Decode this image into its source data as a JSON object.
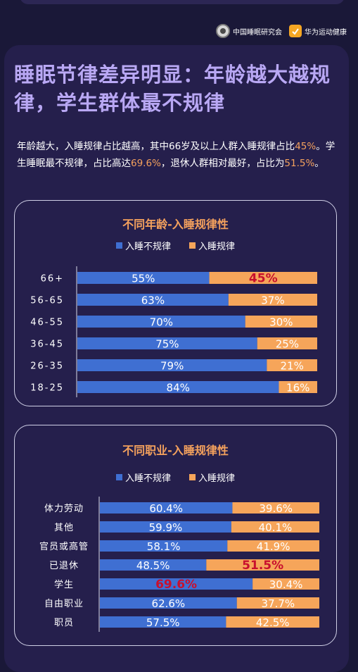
{
  "header": {
    "logos": [
      {
        "label": "中国睡眠研究会",
        "icon": "sleep-society-logo-icon"
      },
      {
        "label": "华为运动健康",
        "icon": "huawei-health-logo-icon"
      }
    ]
  },
  "title": "睡眠节律差异明显：年龄越大越规律，学生群体最不规律",
  "intro": {
    "p1": "年龄越大，入睡规律占比越高，其中66岁及以上人群入睡规律占比",
    "h1": "45%",
    "p2": "。学生睡眠最不规律，占比高达",
    "h2": "69.6%",
    "p3": "，退休人群相对最好，占比为",
    "h3": "51.5%",
    "p4": "。"
  },
  "colors": {
    "irregular": "#3f6fd2",
    "regular": "#f6a55a",
    "highlight_text": "#c8102e",
    "accent": "#f4a15d"
  },
  "chart_data": [
    {
      "type": "bar",
      "orientation": "horizontal-stacked-100",
      "title": "不同年龄-入睡规律性",
      "categories": [
        "66+",
        "56-65",
        "46-55",
        "36-45",
        "26-35",
        "18-25"
      ],
      "series": [
        {
          "name": "入睡不规律",
          "values": [
            55,
            63,
            70,
            75,
            79,
            84
          ]
        },
        {
          "name": "入睡规律",
          "values": [
            45,
            37,
            30,
            25,
            21,
            16
          ]
        }
      ],
      "labels": [
        [
          "55%",
          "45%"
        ],
        [
          "63%",
          "37%"
        ],
        [
          "70%",
          "30%"
        ],
        [
          "75%",
          "25%"
        ],
        [
          "79%",
          "21%"
        ],
        [
          "84%",
          "16%"
        ]
      ],
      "highlight": {
        "category_index": 0,
        "series_index": 1
      },
      "legend": "top",
      "xlim": [
        0,
        100
      ]
    },
    {
      "type": "bar",
      "orientation": "horizontal-stacked-100",
      "title": "不同职业-入睡规律性",
      "categories": [
        "体力劳动",
        "其他",
        "官员或高管",
        "已退休",
        "学生",
        "自由职业",
        "职员"
      ],
      "series": [
        {
          "name": "入睡不规律",
          "values": [
            60.4,
            59.9,
            58.1,
            48.5,
            69.6,
            62.6,
            57.5
          ]
        },
        {
          "name": "入睡规律",
          "values": [
            39.6,
            40.1,
            41.9,
            51.5,
            30.4,
            37.7,
            42.5
          ]
        }
      ],
      "labels": [
        [
          "60.4%",
          "39.6%"
        ],
        [
          "59.9%",
          "40.1%"
        ],
        [
          "58.1%",
          "41.9%"
        ],
        [
          "48.5%",
          "51.5%"
        ],
        [
          "69.6%",
          "30.4%"
        ],
        [
          "62.6%",
          "37.7%"
        ],
        [
          "57.5%",
          "42.5%"
        ]
      ],
      "highlights": [
        {
          "category_index": 3,
          "series_index": 1
        },
        {
          "category_index": 4,
          "series_index": 0
        }
      ],
      "legend": "top",
      "xlim": [
        0,
        100
      ]
    }
  ]
}
